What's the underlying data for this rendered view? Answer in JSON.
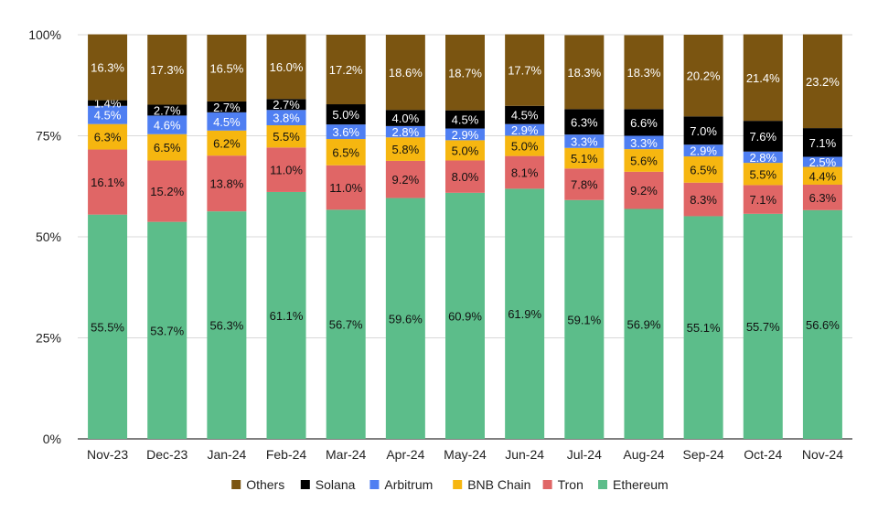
{
  "chart_data": {
    "type": "bar",
    "stacked": true,
    "title": "",
    "xlabel": "",
    "ylabel": "",
    "ylim": [
      0,
      100
    ],
    "y_ticks": [
      "0%",
      "25%",
      "50%",
      "75%",
      "100%"
    ],
    "grid": true,
    "legend_position": "bottom",
    "categories": [
      "Nov-23",
      "Dec-23",
      "Jan-24",
      "Feb-24",
      "Mar-24",
      "Apr-24",
      "May-24",
      "Jun-24",
      "Jul-24",
      "Aug-24",
      "Sep-24",
      "Oct-24",
      "Nov-24"
    ],
    "series": [
      {
        "name": "Ethereum",
        "color": "#5cbd8a",
        "label_color": "#111111",
        "values": [
          55.5,
          53.7,
          56.3,
          61.1,
          56.7,
          59.6,
          60.9,
          61.9,
          59.1,
          56.9,
          55.1,
          55.7,
          56.6
        ]
      },
      {
        "name": "Tron",
        "color": "#e06666",
        "label_color": "#111111",
        "values": [
          16.1,
          15.2,
          13.8,
          11.0,
          11.0,
          9.2,
          8.0,
          8.1,
          7.8,
          9.2,
          8.3,
          7.1,
          6.3
        ]
      },
      {
        "name": "BNB Chain",
        "color": "#f6b610",
        "label_color": "#111111",
        "values": [
          6.3,
          6.5,
          6.2,
          5.5,
          6.5,
          5.8,
          5.0,
          5.0,
          5.1,
          5.6,
          6.5,
          5.5,
          4.4
        ]
      },
      {
        "name": "Arbitrum",
        "color": "#4f7ff2",
        "label_color": "#ffffff",
        "values": [
          4.5,
          4.6,
          4.5,
          3.8,
          3.6,
          2.8,
          2.9,
          2.9,
          3.3,
          3.3,
          2.9,
          2.8,
          2.5
        ]
      },
      {
        "name": "Solana",
        "color": "#000000",
        "label_color": "#ffffff",
        "values": [
          1.4,
          2.7,
          2.7,
          2.7,
          5.0,
          4.0,
          4.5,
          4.5,
          6.3,
          6.6,
          7.0,
          7.6,
          7.1
        ]
      },
      {
        "name": "Others",
        "color": "#7b5511",
        "label_color": "#ffffff",
        "values": [
          16.3,
          17.3,
          16.5,
          16.0,
          17.2,
          18.6,
          18.7,
          17.7,
          18.3,
          18.3,
          20.2,
          21.4,
          23.2
        ]
      }
    ],
    "value_labels": [
      [
        "55.5%",
        "53.7%",
        "56.3%",
        "61.1%",
        "56.7%",
        "59.6%",
        "60.9%",
        "61.9%",
        "59.1%",
        "56.9%",
        "55.1%",
        "55.7%",
        "56.6%"
      ],
      [
        "16.1%",
        "15.2%",
        "13.8%",
        "11.0%",
        "11.0%",
        "9.2%",
        "8.0%",
        "8.1%",
        "7.8%",
        "9.2%",
        "8.3%",
        "7.1%",
        "6.3%"
      ],
      [
        "6.3%",
        "6.5%",
        "6.2%",
        "5.5%",
        "6.5%",
        "5.8%",
        "5.0%",
        "5.0%",
        "5.1%",
        "5.6%",
        "6.5%",
        "5.5%",
        "4.4%"
      ],
      [
        "4.5%",
        "4.6%",
        "4.5%",
        "3.8%",
        "3.6%",
        "2.8%",
        "2.9%",
        "2.9%",
        "3.3%",
        "3.3%",
        "2.9%",
        "2.8%",
        "2.5%"
      ],
      [
        "1.4%",
        "2.7%",
        "2.7%",
        "2.7%",
        "5.0%",
        "4.0%",
        "4.5%",
        "4.5%",
        "6.3%",
        "6.6%",
        "7.0%",
        "7.6%",
        "7.1%"
      ],
      [
        "16.3%",
        "17.3%",
        "16.5%",
        "16.0%",
        "17.2%",
        "18.6%",
        "18.7%",
        "17.7%",
        "18.3%",
        "18.3%",
        "20.2%",
        "21.4%",
        "23.2%"
      ]
    ],
    "legend_order": [
      "Others",
      "Solana",
      "Arbitrum",
      "BNB Chain",
      "Tron",
      "Ethereum"
    ]
  }
}
